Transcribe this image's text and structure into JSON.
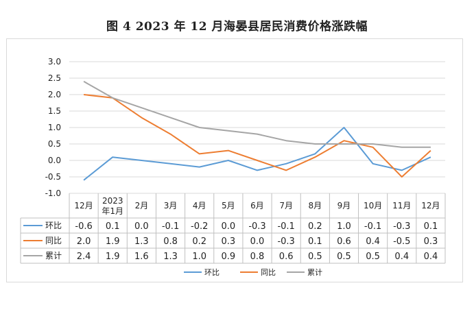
{
  "title": "图 4   2023 年 12 月海晏县居民消费价格涨跌幅",
  "chart_data": {
    "type": "line",
    "title": "图 4   2023 年 12 月海晏县居民消费价格涨跌幅",
    "categories": [
      "12月",
      "2023年1月",
      "2月",
      "3月",
      "4月",
      "5月",
      "6月",
      "7月",
      "8月",
      "9月",
      "10月",
      "11月",
      "12月"
    ],
    "category_lines": [
      [
        "12月"
      ],
      [
        "2023",
        "年1月"
      ],
      [
        "2月"
      ],
      [
        "3月"
      ],
      [
        "4月"
      ],
      [
        "5月"
      ],
      [
        "6月"
      ],
      [
        "7月"
      ],
      [
        "8月"
      ],
      [
        "9月"
      ],
      [
        "10月"
      ],
      [
        "11月"
      ],
      [
        "12月"
      ]
    ],
    "ylim": [
      -1.0,
      3.0
    ],
    "yticks": [
      "3.0",
      "2.5",
      "2.0",
      "1.5",
      "1.0",
      "0.5",
      "0.0",
      "-0.5",
      "-1.0"
    ],
    "grid": true,
    "legend": "bottom",
    "data_table": true,
    "series": [
      {
        "name": "环比",
        "color": "#5b9bd5",
        "values": [
          -0.6,
          0.1,
          0.0,
          -0.1,
          -0.2,
          0.0,
          -0.3,
          -0.1,
          0.2,
          1.0,
          -0.1,
          -0.3,
          0.1
        ],
        "labels": [
          "-0.6",
          "0.1",
          "0.0",
          "-0.1",
          "-0.2",
          "0.0",
          "-0.3",
          "-0.1",
          "0.2",
          "1.0",
          "-0.1",
          "-0.3",
          "0.1"
        ]
      },
      {
        "name": "同比",
        "color": "#ed7d31",
        "values": [
          2.0,
          1.9,
          1.3,
          0.8,
          0.2,
          0.3,
          0.0,
          -0.3,
          0.1,
          0.6,
          0.4,
          -0.5,
          0.3
        ],
        "labels": [
          "2.0",
          "1.9",
          "1.3",
          "0.8",
          "0.2",
          "0.3",
          "0.0",
          "-0.3",
          "0.1",
          "0.6",
          "0.4",
          "-0.5",
          "0.3"
        ]
      },
      {
        "name": "累计",
        "color": "#a5a5a5",
        "values": [
          2.4,
          1.9,
          1.6,
          1.3,
          1.0,
          0.9,
          0.8,
          0.6,
          0.5,
          0.5,
          0.5,
          0.4,
          0.4
        ],
        "labels": [
          "2.4",
          "1.9",
          "1.6",
          "1.3",
          "1.0",
          "0.9",
          "0.8",
          "0.6",
          "0.5",
          "0.5",
          "0.5",
          "0.4",
          "0.4"
        ]
      }
    ]
  }
}
